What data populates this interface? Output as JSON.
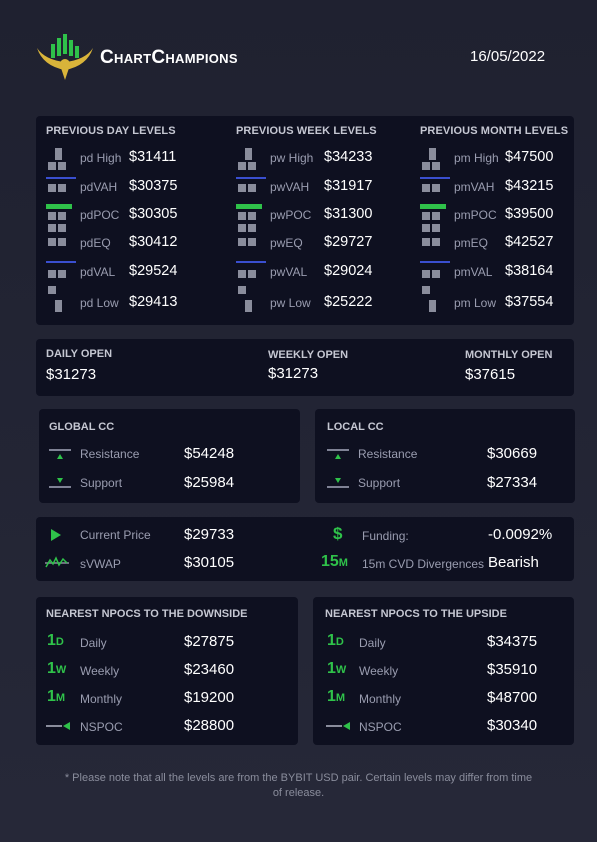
{
  "header": {
    "brand": "ChartChampions",
    "date": "16/05/2022"
  },
  "levels": {
    "day": {
      "title": "PREVIOUS DAY LEVELS",
      "rows": [
        {
          "label": "pd High",
          "value": "$31411"
        },
        {
          "label": "pdVAH",
          "value": "$30375"
        },
        {
          "label": "pdPOC",
          "value": "$30305"
        },
        {
          "label": "pdEQ",
          "value": "$30412"
        },
        {
          "label": "pdVAL",
          "value": "$29524"
        },
        {
          "label": "pd Low",
          "value": "$29413"
        }
      ]
    },
    "week": {
      "title": "PREVIOUS WEEK LEVELS",
      "rows": [
        {
          "label": "pw High",
          "value": "$34233"
        },
        {
          "label": "pwVAH",
          "value": "$31917"
        },
        {
          "label": "pwPOC",
          "value": "$31300"
        },
        {
          "label": "pwEQ",
          "value": "$29727"
        },
        {
          "label": "pwVAL",
          "value": "$29024"
        },
        {
          "label": "pw Low",
          "value": "$25222"
        }
      ]
    },
    "month": {
      "title": "PREVIOUS MONTH LEVELS",
      "rows": [
        {
          "label": "pm High",
          "value": "$47500"
        },
        {
          "label": "pmVAH",
          "value": "$43215"
        },
        {
          "label": "pmPOC",
          "value": "$39500"
        },
        {
          "label": "pmEQ",
          "value": "$42527"
        },
        {
          "label": "pmVAL",
          "value": "$38164"
        },
        {
          "label": "pm Low",
          "value": "$37554"
        }
      ]
    }
  },
  "opens": {
    "daily": {
      "label": "DAILY OPEN",
      "value": "$31273"
    },
    "weekly": {
      "label": "WEEKLY OPEN",
      "value": "$31273"
    },
    "monthly": {
      "label": "MONTHLY OPEN",
      "value": "$37615"
    }
  },
  "global_cc": {
    "title": "GLOBAL CC",
    "resistance": {
      "label": "Resistance",
      "value": "$54248"
    },
    "support": {
      "label": "Support",
      "value": "$25984"
    }
  },
  "local_cc": {
    "title": "LOCAL CC",
    "resistance": {
      "label": "Resistance",
      "value": "$30669"
    },
    "support": {
      "label": "Support",
      "value": "$27334"
    }
  },
  "market": {
    "current_price": {
      "label": "Current Price",
      "value": "$29733"
    },
    "svwap": {
      "label": "sVWAP",
      "value": "$30105"
    },
    "funding": {
      "icon_text": "$",
      "label": "Funding:",
      "value": "-0.0092%"
    },
    "cvd": {
      "icon_text": "15",
      "icon_unit": "M",
      "label": "15m CVD Divergences",
      "value": "Bearish"
    }
  },
  "npoc_down": {
    "title": "NEAREST NPOCS TO THE DOWNSIDE",
    "rows": [
      {
        "icon_num": "1",
        "icon_unit": "D",
        "label": "Daily",
        "value": "$27875"
      },
      {
        "icon_num": "1",
        "icon_unit": "W",
        "label": "Weekly",
        "value": "$23460"
      },
      {
        "icon_num": "1",
        "icon_unit": "M",
        "label": "Monthly",
        "value": "$19200"
      },
      {
        "label": "NSPOC",
        "value": "$28800"
      }
    ]
  },
  "npoc_up": {
    "title": "NEAREST NPOCS TO THE UPSIDE",
    "rows": [
      {
        "icon_num": "1",
        "icon_unit": "D",
        "label": "Daily",
        "value": "$34375"
      },
      {
        "icon_num": "1",
        "icon_unit": "W",
        "label": "Weekly",
        "value": "$35910"
      },
      {
        "icon_num": "1",
        "icon_unit": "M",
        "label": "Monthly",
        "value": "$48700"
      },
      {
        "label": "NSPOC",
        "value": "$30340"
      }
    ]
  },
  "footnote": "* Please note that all the levels are from the BYBIT USD pair. Certain levels may differ from time of release.",
  "colors": {
    "accent_green": "#2fc24a",
    "vah_val_blue": "#3a4fd0",
    "card_bg": "#0e1020",
    "page_bg": "#262838",
    "logo_gold": "#d9b43a"
  }
}
